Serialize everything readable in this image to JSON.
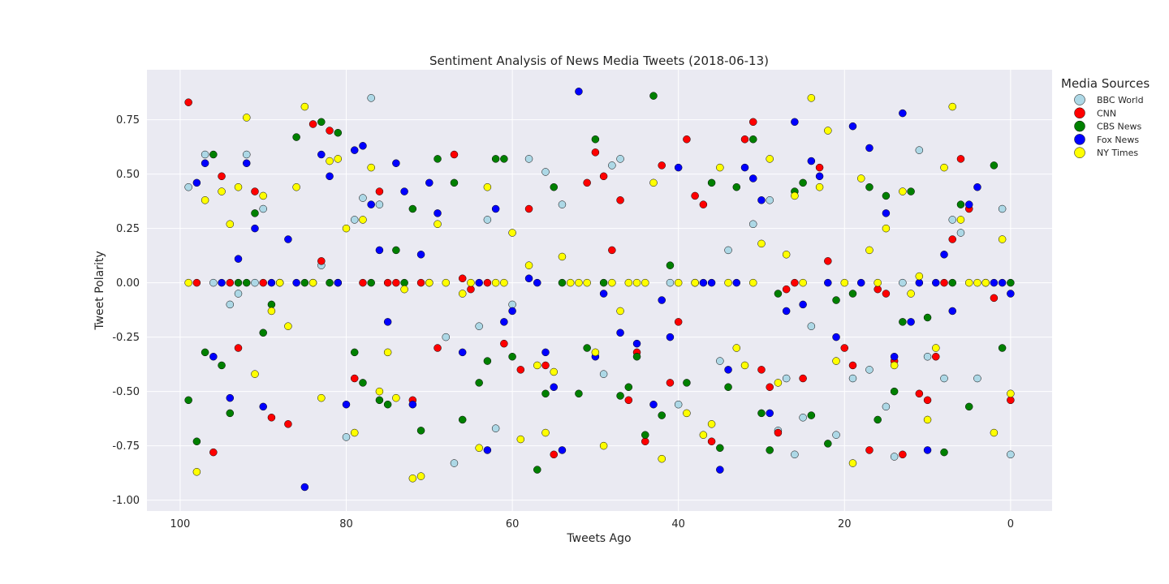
{
  "chart_data": {
    "type": "scatter",
    "title": "Sentiment Analysis of News Media Tweets (2018-06-13)",
    "xlabel": "Tweets Ago",
    "ylabel": "Tweet Polarity",
    "xlim": [
      104,
      -5
    ],
    "ylim": [
      -1.05,
      0.98
    ],
    "x_ticks": [
      100,
      80,
      60,
      40,
      20,
      0
    ],
    "y_ticks": [
      -1.0,
      -0.75,
      -0.5,
      -0.25,
      0.0,
      0.25,
      0.5,
      0.75
    ],
    "grid": true,
    "legend": {
      "title": "Media Sources",
      "placement": "outside-right-top"
    },
    "series": [
      {
        "name": "BBC World",
        "color": "#add8e6",
        "x": [
          99,
          97,
          96,
          94,
          93,
          92,
          91,
          90,
          83,
          81,
          80,
          79,
          78,
          77,
          76,
          70,
          68,
          67,
          64,
          63,
          62,
          60,
          58,
          56,
          54,
          49,
          48,
          47,
          41,
          40,
          35,
          34,
          31,
          29,
          28,
          27,
          26,
          25,
          24,
          21,
          19,
          17,
          15,
          14,
          13,
          11,
          10,
          8,
          7,
          6,
          4,
          1,
          0
        ],
        "y": [
          0.44,
          0.59,
          0.0,
          -0.1,
          -0.05,
          0.59,
          0.0,
          0.34,
          0.08,
          0.0,
          -0.71,
          0.29,
          0.39,
          0.85,
          0.36,
          0.0,
          -0.25,
          -0.83,
          -0.2,
          0.29,
          -0.67,
          -0.1,
          0.57,
          0.51,
          0.36,
          -0.42,
          0.54,
          0.57,
          0.0,
          -0.56,
          -0.36,
          0.15,
          0.27,
          0.38,
          -0.68,
          -0.44,
          -0.79,
          -0.62,
          -0.2,
          -0.7,
          -0.44,
          -0.4,
          -0.57,
          -0.8,
          0.0,
          0.61,
          -0.34,
          -0.44,
          0.29,
          0.23,
          -0.44,
          0.34,
          -0.79
        ]
      },
      {
        "name": "CNN",
        "color": "#ff0000",
        "x": [
          99,
          98,
          96,
          95,
          94,
          93,
          91,
          90,
          89,
          87,
          84,
          83,
          82,
          79,
          78,
          76,
          75,
          74,
          72,
          71,
          69,
          67,
          66,
          65,
          63,
          61,
          59,
          58,
          56,
          55,
          51,
          50,
          49,
          48,
          47,
          46,
          45,
          44,
          42,
          41,
          40,
          39,
          38,
          37,
          36,
          31,
          32,
          30,
          29,
          28,
          27,
          26,
          25,
          23,
          22,
          20,
          19,
          17,
          16,
          15,
          14,
          13,
          11,
          10,
          9,
          8,
          7,
          6,
          5,
          2,
          0
        ],
        "y": [
          0.83,
          0.0,
          -0.78,
          0.49,
          0.0,
          -0.3,
          0.42,
          0.0,
          -0.62,
          -0.65,
          0.73,
          0.1,
          0.7,
          -0.44,
          0.0,
          0.42,
          0.0,
          0.0,
          -0.54,
          0.0,
          -0.3,
          0.59,
          0.02,
          -0.03,
          0.0,
          -0.28,
          -0.4,
          0.34,
          -0.38,
          -0.79,
          0.46,
          0.6,
          0.49,
          0.15,
          0.38,
          -0.54,
          -0.32,
          -0.73,
          0.54,
          -0.46,
          -0.18,
          0.66,
          0.4,
          0.36,
          -0.73,
          0.74,
          0.66,
          -0.4,
          -0.48,
          -0.69,
          -0.03,
          0.0,
          -0.44,
          0.53,
          0.1,
          -0.3,
          -0.38,
          -0.77,
          -0.03,
          -0.05,
          -0.36,
          -0.79,
          -0.51,
          -0.54,
          -0.34,
          0.0,
          0.2,
          0.57,
          0.34,
          -0.07,
          -0.54
        ]
      },
      {
        "name": "CBS News",
        "color": "#008000",
        "x": [
          99,
          98,
          97,
          96,
          95,
          94,
          93,
          92,
          91,
          90,
          89,
          88,
          86,
          85,
          83,
          82,
          81,
          79,
          78,
          77,
          76,
          75,
          74,
          73,
          72,
          71,
          69,
          67,
          66,
          64,
          63,
          62,
          61,
          60,
          57,
          56,
          55,
          54,
          52,
          51,
          50,
          49,
          47,
          46,
          45,
          44,
          43,
          42,
          41,
          39,
          36,
          35,
          34,
          33,
          31,
          30,
          29,
          28,
          26,
          25,
          24,
          22,
          21,
          19,
          17,
          16,
          15,
          14,
          13,
          12,
          10,
          8,
          7,
          6,
          5,
          2,
          1,
          0
        ],
        "y": [
          -0.54,
          -0.73,
          -0.32,
          0.59,
          -0.38,
          -0.6,
          0.0,
          0.0,
          0.32,
          -0.23,
          -0.1,
          0.0,
          0.67,
          0.0,
          0.74,
          0.0,
          0.69,
          -0.32,
          -0.46,
          0.0,
          -0.54,
          -0.56,
          0.15,
          0.0,
          0.34,
          -0.68,
          0.57,
          0.46,
          -0.63,
          -0.46,
          -0.36,
          0.57,
          0.57,
          -0.34,
          -0.86,
          -0.51,
          0.44,
          0.0,
          -0.51,
          -0.3,
          0.66,
          0.0,
          -0.52,
          -0.48,
          -0.34,
          -0.7,
          0.86,
          -0.61,
          0.08,
          -0.46,
          0.46,
          -0.76,
          -0.48,
          0.44,
          0.66,
          -0.6,
          -0.77,
          -0.05,
          0.42,
          0.46,
          -0.61,
          -0.74,
          -0.08,
          -0.05,
          0.44,
          -0.63,
          0.4,
          -0.5,
          -0.18,
          0.42,
          -0.16,
          -0.78,
          0.0,
          0.36,
          -0.57,
          0.54,
          -0.3,
          0.0
        ]
      },
      {
        "name": "Fox News",
        "color": "#0000ff",
        "x": [
          98,
          97,
          96,
          95,
          94,
          93,
          92,
          91,
          90,
          89,
          87,
          86,
          85,
          84,
          83,
          82,
          81,
          80,
          79,
          78,
          77,
          76,
          75,
          74,
          73,
          72,
          71,
          70,
          69,
          66,
          64,
          63,
          62,
          61,
          60,
          58,
          57,
          56,
          55,
          54,
          52,
          50,
          49,
          47,
          45,
          43,
          42,
          41,
          40,
          38,
          37,
          36,
          35,
          34,
          33,
          32,
          31,
          30,
          29,
          27,
          26,
          25,
          24,
          23,
          22,
          21,
          19,
          18,
          17,
          15,
          14,
          13,
          12,
          11,
          10,
          9,
          8,
          7,
          5,
          4,
          3,
          2,
          1,
          0
        ],
        "y": [
          0.46,
          0.55,
          -0.34,
          0.0,
          -0.53,
          0.11,
          0.55,
          0.25,
          -0.57,
          0.0,
          0.2,
          0.0,
          -0.94,
          0.0,
          0.59,
          0.49,
          0.0,
          -0.56,
          0.61,
          0.63,
          0.36,
          0.15,
          -0.18,
          0.55,
          0.42,
          -0.56,
          0.13,
          0.46,
          0.32,
          -0.32,
          0.0,
          -0.77,
          0.34,
          -0.18,
          -0.13,
          0.02,
          0.0,
          -0.32,
          -0.48,
          -0.77,
          0.88,
          -0.34,
          -0.05,
          -0.23,
          -0.28,
          -0.56,
          -0.08,
          -0.25,
          0.53,
          0.0,
          0.0,
          0.0,
          -0.86,
          -0.4,
          0.0,
          0.53,
          0.48,
          0.38,
          -0.6,
          -0.13,
          0.74,
          -0.1,
          0.56,
          0.49,
          0.0,
          -0.25,
          0.72,
          0.0,
          0.62,
          0.32,
          -0.34,
          0.78,
          -0.18,
          0.0,
          -0.77,
          0.0,
          0.13,
          -0.13,
          0.36,
          0.44,
          0.0,
          0.0,
          0.0,
          -0.05
        ]
      },
      {
        "name": "NY Times",
        "color": "#ffff00",
        "x": [
          99,
          98,
          97,
          95,
          94,
          93,
          92,
          91,
          90,
          89,
          88,
          87,
          86,
          85,
          84,
          83,
          82,
          81,
          80,
          79,
          78,
          77,
          76,
          75,
          74,
          73,
          72,
          71,
          70,
          69,
          68,
          66,
          65,
          64,
          63,
          62,
          61,
          60,
          59,
          58,
          57,
          56,
          55,
          54,
          53,
          52,
          51,
          50,
          49,
          48,
          47,
          46,
          45,
          44,
          43,
          42,
          40,
          39,
          38,
          37,
          36,
          35,
          34,
          33,
          32,
          31,
          30,
          29,
          28,
          27,
          26,
          25,
          24,
          23,
          22,
          21,
          20,
          19,
          18,
          17,
          16,
          15,
          14,
          13,
          12,
          11,
          10,
          9,
          8,
          7,
          6,
          5,
          4,
          3,
          2,
          1,
          0
        ],
        "y": [
          0.0,
          -0.87,
          0.38,
          0.42,
          0.27,
          0.44,
          0.76,
          -0.42,
          0.4,
          -0.13,
          0.0,
          -0.2,
          0.44,
          0.81,
          0.0,
          -0.53,
          0.56,
          0.57,
          0.25,
          -0.69,
          0.29,
          0.53,
          -0.5,
          -0.32,
          -0.53,
          -0.03,
          -0.9,
          -0.89,
          0.0,
          0.27,
          0.0,
          -0.05,
          0.0,
          -0.76,
          0.44,
          0.0,
          0.0,
          0.23,
          -0.72,
          0.08,
          -0.38,
          -0.69,
          -0.41,
          0.12,
          0.0,
          0.0,
          0.0,
          -0.32,
          -0.75,
          0.0,
          -0.13,
          0.0,
          0.0,
          0.0,
          0.46,
          -0.81,
          0.0,
          -0.6,
          0.0,
          -0.7,
          -0.65,
          0.53,
          0.0,
          -0.3,
          -0.38,
          0.0,
          0.18,
          0.57,
          -0.46,
          0.13,
          0.4,
          0.0,
          0.85,
          0.44,
          0.7,
          -0.36,
          0.0,
          -0.83,
          0.48,
          0.15,
          0.0,
          0.25,
          -0.38,
          0.42,
          -0.05,
          0.03,
          -0.63,
          -0.3,
          0.53,
          0.81,
          0.29,
          0.0,
          0.0,
          0.0,
          -0.69,
          0.2,
          -0.51
        ]
      }
    ]
  }
}
